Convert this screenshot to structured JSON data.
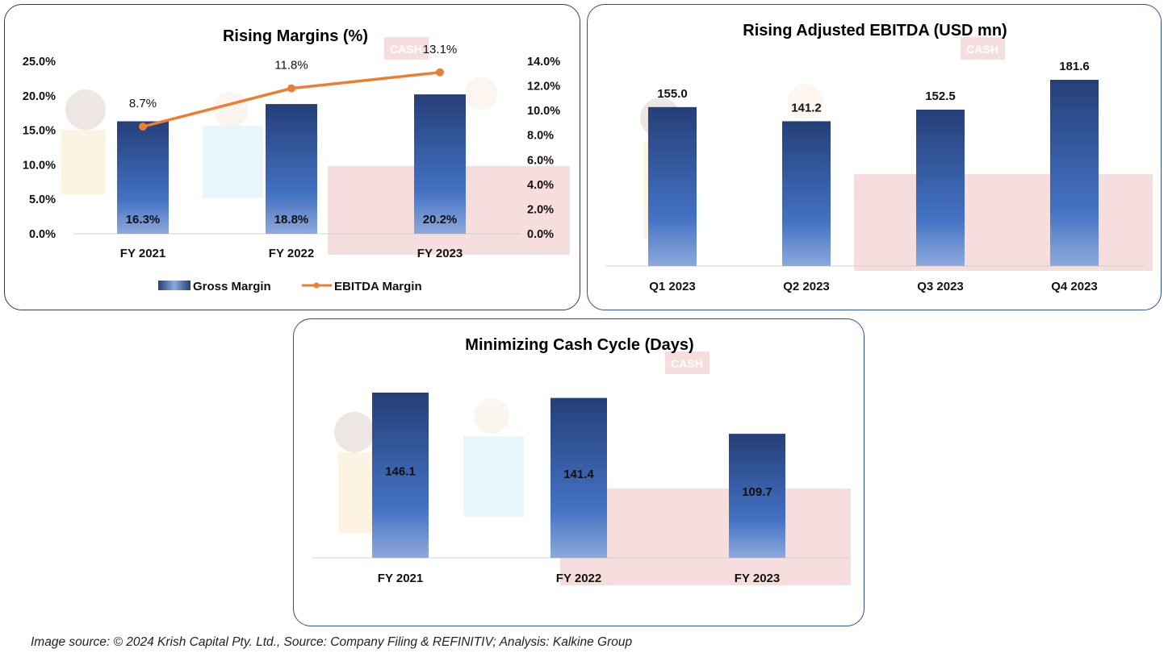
{
  "colors": {
    "bar_top": "#253f78",
    "bar_mid": "#4472c4",
    "bar_bottom": "#8ea9db",
    "line": "#ed7d31",
    "axis": "#d0d0d0"
  },
  "chart_data": [
    {
      "type": "bar",
      "title": "Rising Margins (%)",
      "categories": [
        "FY 2021",
        "FY 2022",
        "FY 2023"
      ],
      "series": [
        {
          "name": "Gross Margin",
          "kind": "bar",
          "axis": "left",
          "values": [
            16.3,
            18.8,
            20.2
          ],
          "labels": [
            "16.3%",
            "18.8%",
            "20.2%"
          ]
        },
        {
          "name": "EBITDA Margin",
          "kind": "line",
          "axis": "right",
          "values": [
            8.7,
            11.8,
            13.1
          ],
          "labels": [
            "8.7%",
            "11.8%",
            "13.1%"
          ]
        }
      ],
      "y_left": {
        "range": [
          0,
          25
        ],
        "ticks": [
          "0.0%",
          "5.0%",
          "10.0%",
          "15.0%",
          "20.0%",
          "25.0%"
        ]
      },
      "y_right": {
        "range": [
          0,
          14
        ],
        "ticks": [
          "0.0%",
          "2.0%",
          "4.0%",
          "6.0%",
          "8.0%",
          "10.0%",
          "12.0%",
          "14.0%"
        ]
      },
      "legend": [
        "Gross Margin",
        "EBITDA Margin"
      ],
      "legend_position": "bottom",
      "grid": false
    },
    {
      "type": "bar",
      "title": "Rising Adjusted EBITDA (USD mn)",
      "categories": [
        "Q1 2023",
        "Q2 2023",
        "Q3 2023",
        "Q4 2023"
      ],
      "values": [
        155.0,
        141.2,
        152.5,
        181.6
      ],
      "labels": [
        "155.0",
        "141.2",
        "152.5",
        "181.6"
      ],
      "ylim": [
        0,
        190
      ],
      "grid": false
    },
    {
      "type": "bar",
      "title": "Minimizing Cash Cycle (Days)",
      "categories": [
        "FY 2021",
        "FY 2022",
        "FY 2023"
      ],
      "values": [
        146.1,
        141.4,
        109.7
      ],
      "labels": [
        "146.1",
        "141.4",
        "109.7"
      ],
      "ylim": [
        0,
        150
      ],
      "grid": false
    }
  ],
  "background_sign": "CASH",
  "footer": "Image source: © 2024 Krish Capital Pty. Ltd., Source: Company Filing & REFINITIV; Analysis: Kalkine Group"
}
